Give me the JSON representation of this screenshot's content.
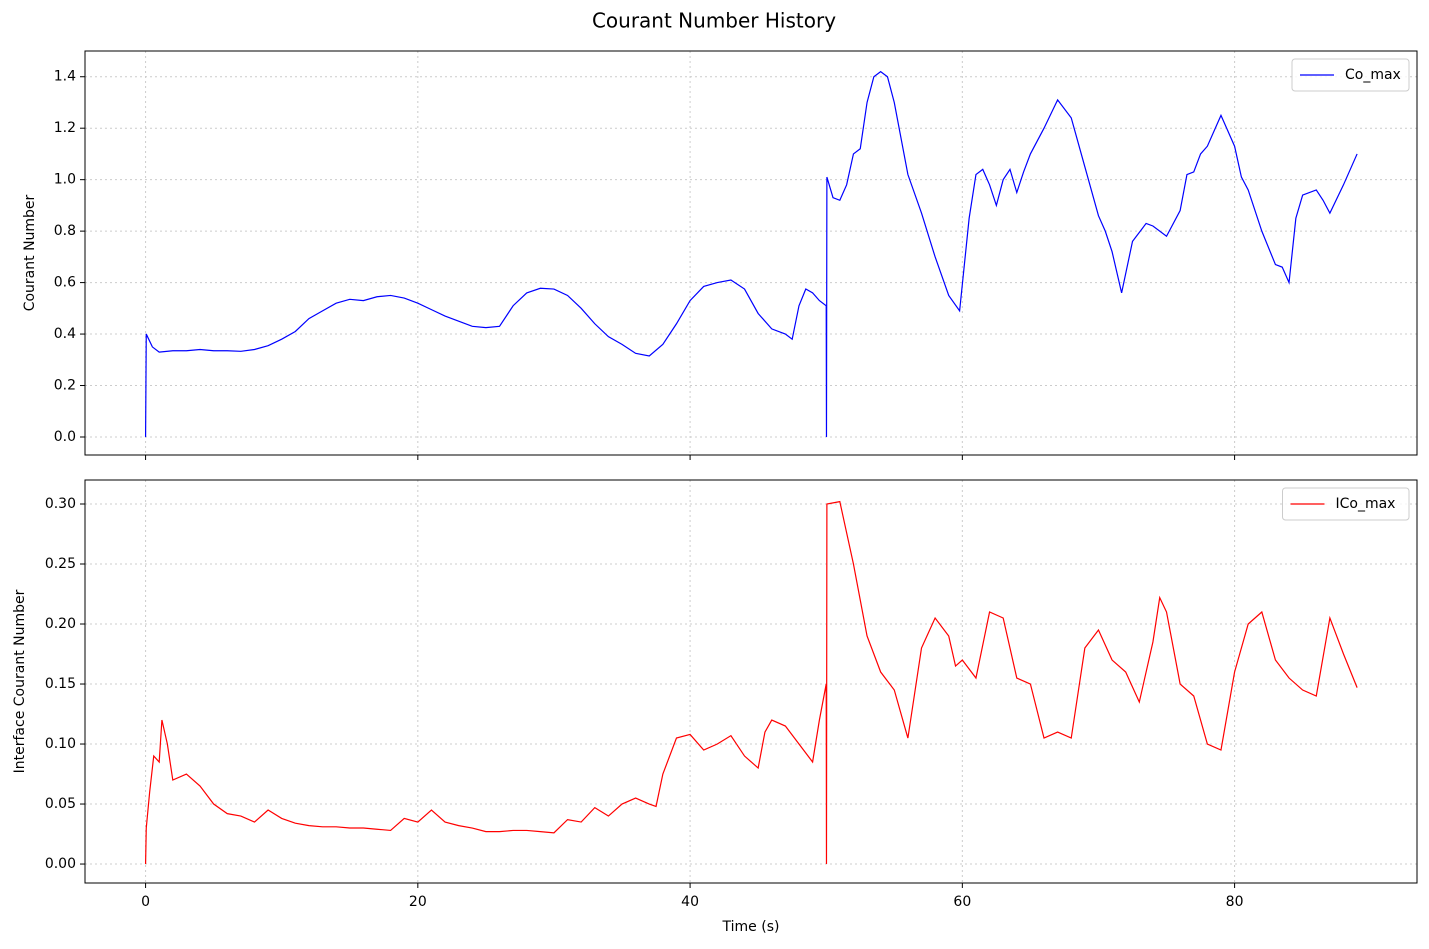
{
  "title": "Courant Number History",
  "chart_data": [
    {
      "type": "line",
      "ylabel": "Courant Number",
      "grid": true,
      "legend": "upper right",
      "xlim": [
        -4.45,
        93.4
      ],
      "xticks": [
        0,
        20,
        40,
        60,
        80
      ],
      "ylim": [
        -0.07,
        1.5
      ],
      "yticks": [
        {
          "value": 0,
          "label": "0.0"
        },
        0.2,
        0.4,
        0.6,
        0.8,
        {
          "value": 1,
          "label": "1.0"
        },
        1.2,
        1.4
      ],
      "x": [
        0,
        0.05,
        0.5,
        1,
        2,
        3,
        4,
        5,
        6,
        7,
        8,
        9,
        10,
        11,
        12,
        13,
        14,
        15,
        16,
        17,
        18,
        19,
        20,
        21,
        22,
        23,
        24,
        25,
        26,
        27,
        28,
        29,
        30,
        31,
        32,
        33,
        34,
        35,
        36,
        37,
        38,
        39,
        40,
        41,
        42,
        43,
        44,
        45,
        46,
        47,
        47.5,
        48,
        48.5,
        49,
        49.5,
        50,
        50.02,
        50.05,
        50.5,
        51,
        51.5,
        52,
        52.5,
        53,
        53.5,
        54,
        54.5,
        55,
        56,
        57,
        58,
        59,
        59.8,
        60.5,
        61,
        61.5,
        62,
        62.5,
        63,
        63.5,
        64,
        64.5,
        65,
        66,
        67,
        68,
        69,
        70,
        70.5,
        71,
        71.7,
        72.5,
        73.5,
        74,
        75,
        76,
        76.5,
        77,
        77.5,
        78,
        79,
        80,
        80.5,
        81,
        82,
        83,
        83.5,
        84,
        84.5,
        85,
        86,
        86.5,
        87,
        88,
        89
      ],
      "series": [
        {
          "name": "Co_max",
          "color": "#0000ff",
          "values": [
            0,
            0.4,
            0.35,
            0.33,
            0.335,
            0.335,
            0.34,
            0.335,
            0.335,
            0.333,
            0.34,
            0.355,
            0.38,
            0.41,
            0.46,
            0.49,
            0.52,
            0.535,
            0.53,
            0.545,
            0.55,
            0.54,
            0.52,
            0.495,
            0.47,
            0.45,
            0.43,
            0.425,
            0.43,
            0.51,
            0.56,
            0.578,
            0.575,
            0.55,
            0.5,
            0.44,
            0.39,
            0.36,
            0.325,
            0.315,
            0.36,
            0.44,
            0.53,
            0.585,
            0.6,
            0.61,
            0.575,
            0.48,
            0.42,
            0.4,
            0.38,
            0.51,
            0.575,
            0.56,
            0.53,
            0.51,
            0,
            1.01,
            0.93,
            0.92,
            0.98,
            1.1,
            1.12,
            1.3,
            1.4,
            1.42,
            1.4,
            1.3,
            1.02,
            0.87,
            0.7,
            0.55,
            0.49,
            0.85,
            1.02,
            1.04,
            0.98,
            0.9,
            1,
            1.04,
            0.95,
            1.03,
            1.1,
            1.2,
            1.31,
            1.24,
            1.05,
            0.86,
            0.8,
            0.72,
            0.56,
            0.76,
            0.83,
            0.82,
            0.78,
            0.88,
            1.02,
            1.03,
            1.1,
            1.13,
            1.25,
            1.13,
            1.01,
            0.96,
            0.8,
            0.67,
            0.66,
            0.6,
            0.85,
            0.94,
            0.96,
            0.92,
            0.87,
            0.98,
            1.1
          ]
        }
      ]
    },
    {
      "type": "line",
      "ylabel": "Interface Courant Number",
      "xlabel": "Time (s)",
      "grid": true,
      "legend": "upper right",
      "xlim": [
        -4.45,
        93.4
      ],
      "xticks": [
        0,
        20,
        40,
        60,
        80
      ],
      "ylim": [
        -0.0158,
        0.32
      ],
      "yticks": [
        {
          "value": 0,
          "label": "0.00"
        },
        0.05,
        {
          "value": 0.1,
          "label": "0.10"
        },
        0.15,
        {
          "value": 0.2,
          "label": "0.20"
        },
        0.25,
        {
          "value": 0.3,
          "label": "0.30"
        }
      ],
      "x": [
        0,
        0.05,
        0.3,
        0.6,
        1,
        1.2,
        1.6,
        2,
        3,
        4,
        5,
        6,
        7,
        8,
        9,
        10,
        11,
        12,
        13,
        14,
        15,
        16,
        17,
        18,
        19,
        20,
        21,
        22,
        23,
        24,
        25,
        26,
        27,
        28,
        29,
        30,
        31,
        32,
        33,
        34,
        35,
        36,
        37,
        37.5,
        38,
        39,
        40,
        41,
        42,
        43,
        44,
        45,
        45.5,
        46,
        47,
        48,
        49,
        49.5,
        50,
        50.02,
        50.05,
        51,
        52,
        53,
        54,
        55,
        56,
        57,
        58,
        59,
        59.5,
        60,
        61,
        62,
        63,
        64,
        65,
        66,
        67,
        68,
        69,
        70,
        71,
        72,
        73,
        74,
        74.5,
        75,
        76,
        77,
        78,
        79,
        80,
        81,
        82,
        83,
        84,
        85,
        86,
        87,
        88,
        89
      ],
      "series": [
        {
          "name": "ICo_max",
          "color": "#ff0000",
          "values": [
            0,
            0.03,
            0.06,
            0.09,
            0.085,
            0.12,
            0.1,
            0.07,
            0.075,
            0.065,
            0.05,
            0.042,
            0.04,
            0.035,
            0.045,
            0.038,
            0.034,
            0.032,
            0.031,
            0.031,
            0.03,
            0.03,
            0.029,
            0.028,
            0.038,
            0.035,
            0.045,
            0.035,
            0.032,
            0.03,
            0.027,
            0.027,
            0.028,
            0.028,
            0.027,
            0.026,
            0.037,
            0.035,
            0.047,
            0.04,
            0.05,
            0.055,
            0.05,
            0.048,
            0.075,
            0.105,
            0.108,
            0.095,
            0.1,
            0.107,
            0.09,
            0.08,
            0.11,
            0.12,
            0.115,
            0.1,
            0.085,
            0.12,
            0.15,
            0,
            0.3,
            0.302,
            0.25,
            0.19,
            0.16,
            0.145,
            0.105,
            0.18,
            0.205,
            0.19,
            0.165,
            0.17,
            0.155,
            0.21,
            0.205,
            0.155,
            0.15,
            0.105,
            0.11,
            0.105,
            0.18,
            0.195,
            0.17,
            0.16,
            0.135,
            0.185,
            0.222,
            0.21,
            0.15,
            0.14,
            0.1,
            0.095,
            0.16,
            0.2,
            0.21,
            0.17,
            0.155,
            0.145,
            0.14,
            0.205,
            0.175,
            0.147
          ]
        }
      ]
    }
  ]
}
